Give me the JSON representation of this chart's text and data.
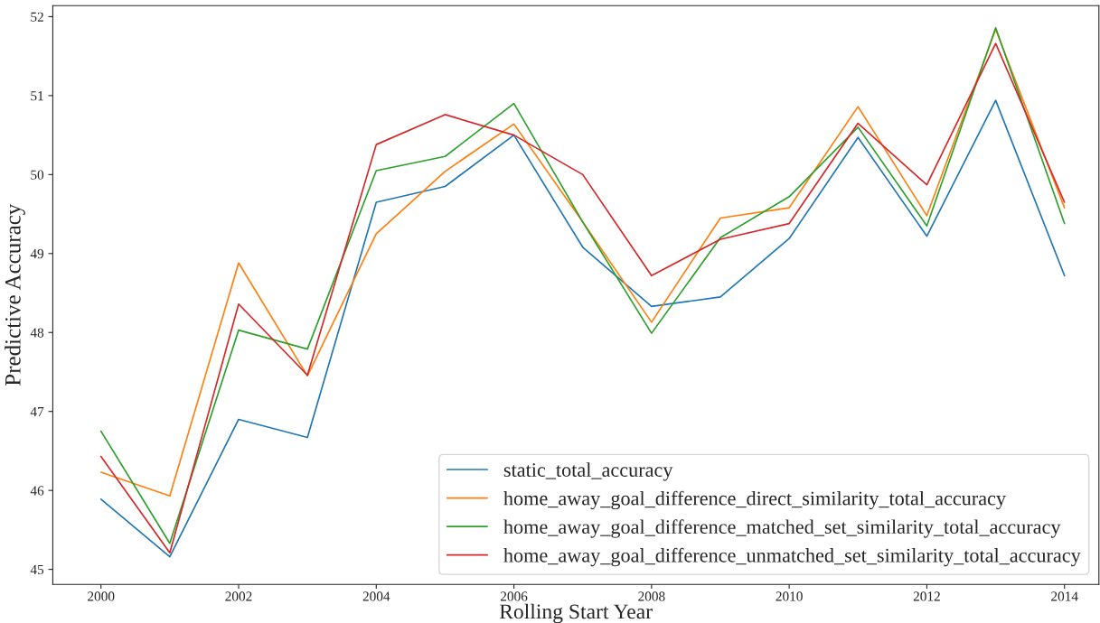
{
  "chart_data": {
    "type": "line",
    "xlabel": "Rolling Start Year",
    "ylabel": "Predictive Accuracy",
    "x": [
      2000,
      2001,
      2002,
      2003,
      2004,
      2005,
      2006,
      2007,
      2008,
      2009,
      2010,
      2011,
      2012,
      2013,
      2014
    ],
    "series": [
      {
        "name": "static_total_accuracy",
        "color": "#1f77b4",
        "values": [
          45.89,
          45.16,
          46.9,
          46.67,
          49.65,
          49.85,
          50.5,
          49.08,
          48.33,
          48.45,
          49.19,
          50.47,
          49.22,
          50.94,
          48.72
        ]
      },
      {
        "name": "home_away_goal_difference_direct_similarity_total_accuracy",
        "color": "#ff7f0e",
        "values": [
          46.23,
          45.93,
          48.88,
          47.45,
          49.25,
          50.04,
          50.64,
          49.4,
          48.13,
          49.45,
          49.58,
          50.86,
          49.48,
          51.84,
          49.58
        ]
      },
      {
        "name": "home_away_goal_difference_matched_set_similarity_total_accuracy",
        "color": "#2ca02c",
        "values": [
          46.75,
          45.33,
          48.03,
          47.79,
          50.05,
          50.23,
          50.9,
          49.4,
          47.99,
          49.2,
          49.72,
          50.6,
          49.35,
          51.86,
          49.38
        ]
      },
      {
        "name": "home_away_goal_difference_unmatched_set_similarity_total_accuracy",
        "color": "#d62728",
        "values": [
          46.43,
          45.21,
          48.36,
          47.46,
          50.38,
          50.76,
          50.5,
          50.0,
          48.72,
          49.18,
          49.38,
          50.65,
          49.87,
          51.66,
          49.65
        ]
      }
    ],
    "xlim": [
      1999.3,
      2014.5
    ],
    "ylim": [
      44.81,
      52.14
    ],
    "xticks": [
      2000,
      2002,
      2004,
      2006,
      2008,
      2010,
      2012,
      2014
    ],
    "yticks": [
      45,
      46,
      47,
      48,
      49,
      50,
      51,
      52
    ],
    "grid": false,
    "legend": "bottom right",
    "marker": "none",
    "line_style": "solid"
  }
}
